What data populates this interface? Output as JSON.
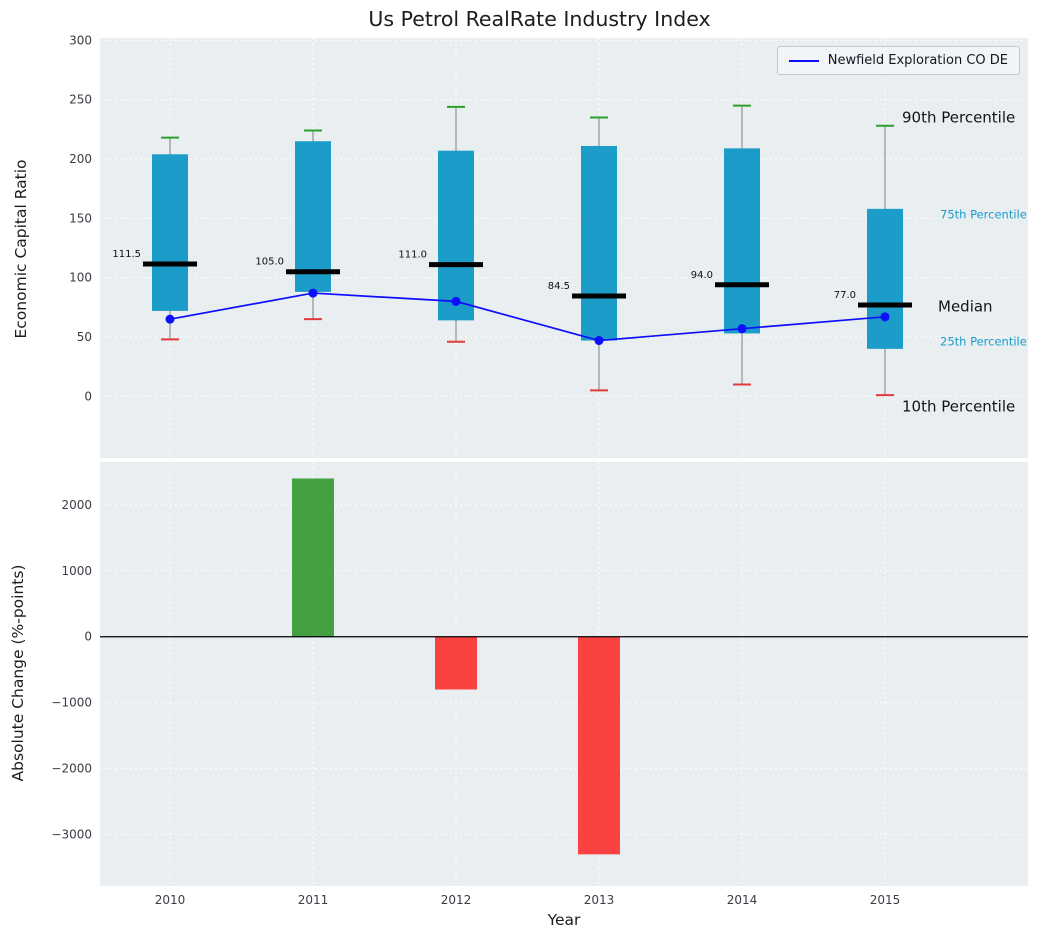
{
  "title": "Us Petrol RealRate Industry Index",
  "legend": {
    "series_label": "Newfield Exploration CO DE"
  },
  "colors": {
    "box": "#1b9cc9",
    "median": "#000000",
    "company_line": "#0d0dff",
    "cap_top": "#2e9e2e",
    "cap_bottom": "#e23b3b",
    "whisker": "#999999",
    "bar_positive": "#43a143",
    "bar_negative": "#fb4242",
    "axes_bg": "#e9eef1",
    "annotation_small": "#1b9cc9",
    "annotation_large": "#141414",
    "tick_label": "#3c3c46"
  },
  "chart_data": [
    {
      "type": "boxplot+line",
      "title": "Us Petrol RealRate Industry Index",
      "ylabel": "Economic Capital Ratio",
      "ylim": [
        -52,
        302
      ],
      "yticks": [
        0,
        50,
        100,
        150,
        200,
        250,
        300
      ],
      "grid": true,
      "legend_position": "upper right",
      "categories": [
        "2010",
        "2011",
        "2012",
        "2013",
        "2014",
        "2015"
      ],
      "boxes": [
        {
          "year": "2010",
          "p10": 48,
          "p25": 72,
          "median": 111.5,
          "p75": 204,
          "p90": 218
        },
        {
          "year": "2011",
          "p10": 65,
          "p25": 88,
          "median": 105.0,
          "p75": 215,
          "p90": 224
        },
        {
          "year": "2012",
          "p10": 46,
          "p25": 64,
          "median": 111.0,
          "p75": 207,
          "p90": 244
        },
        {
          "year": "2013",
          "p10": 5,
          "p25": 47,
          "median": 84.5,
          "p75": 211,
          "p90": 235
        },
        {
          "year": "2014",
          "p10": 10,
          "p25": 53,
          "median": 94.0,
          "p75": 209,
          "p90": 245
        },
        {
          "year": "2015",
          "p10": 1,
          "p25": 40,
          "median": 77.0,
          "p75": 158,
          "p90": 228
        }
      ],
      "median_labels": [
        "111.5",
        "105.0",
        "111.0",
        "84.5",
        "94.0",
        "77.0"
      ],
      "series": [
        {
          "name": "Newfield Exploration CO DE",
          "values": [
            65,
            87,
            80,
            47,
            57,
            67
          ]
        }
      ],
      "annotations": [
        {
          "label": "90th Percentile",
          "anchor": "p90"
        },
        {
          "label": "75th Percentile",
          "anchor": "p75"
        },
        {
          "label": "Median",
          "anchor": "median"
        },
        {
          "label": "25th Percentile",
          "anchor": "p25"
        },
        {
          "label": "10th Percentile",
          "anchor": "p10"
        }
      ]
    },
    {
      "type": "bar",
      "ylabel": "Absolute Change (%-points)",
      "xlabel": "Year",
      "ylim": [
        -3780,
        2650
      ],
      "yticks": [
        -3000,
        -2000,
        -1000,
        0,
        1000,
        2000
      ],
      "grid": true,
      "categories": [
        "2010",
        "2011",
        "2012",
        "2013",
        "2014",
        "2015"
      ],
      "values": [
        null,
        2400,
        -800,
        -3300,
        null,
        null
      ]
    }
  ]
}
